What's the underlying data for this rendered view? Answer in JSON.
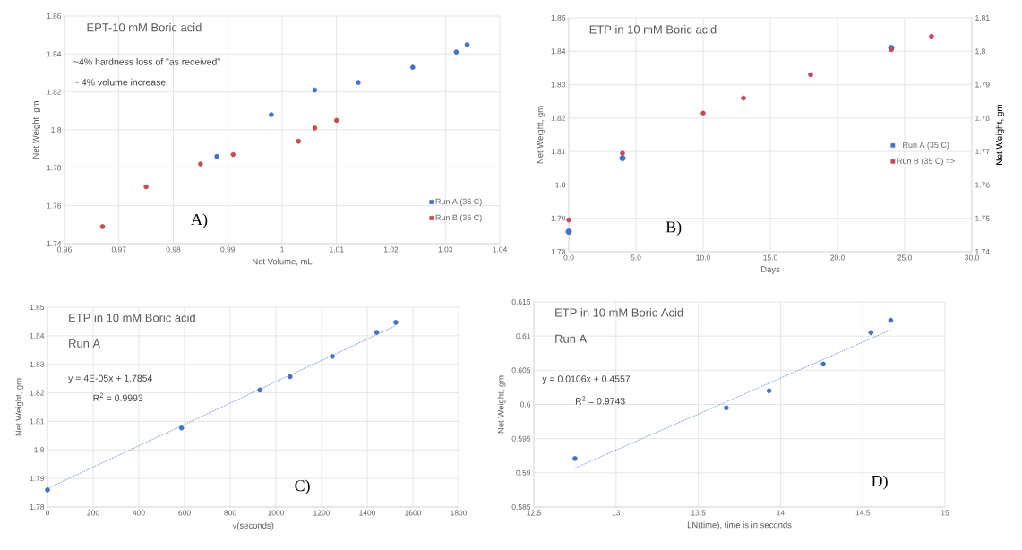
{
  "chart_data": [
    {
      "type": "scatter",
      "title": "EPT-10 mM Boric acid",
      "xlabel": "Net Volume, mL",
      "ylabel": "Net Weight, gm",
      "annotations": [
        "~4% hardness loss of \"as received\"",
        "~ 4% volume increase",
        "A)"
      ],
      "series": [
        {
          "name": "Run A (35 C)",
          "color": "#4472c4",
          "x": [
            0.988,
            0.998,
            1.006,
            1.014,
            1.024,
            1.032,
            1.034
          ],
          "values": [
            1.786,
            1.808,
            1.821,
            1.825,
            1.833,
            1.841,
            1.845
          ]
        },
        {
          "name": "Run B (35 C)",
          "color": "#c0504d",
          "x": [
            0.967,
            0.975,
            0.985,
            0.991,
            1.003,
            1.006,
            1.01
          ],
          "values": [
            1.749,
            1.77,
            1.782,
            1.787,
            1.794,
            1.801,
            1.805
          ]
        }
      ],
      "xlim": [
        0.96,
        1.04
      ],
      "xticks": [
        0.96,
        0.97,
        0.98,
        0.99,
        1,
        1.01,
        1.02,
        1.03,
        1.04
      ],
      "ylim": [
        1.74,
        1.86
      ],
      "yticks": [
        1.74,
        1.76,
        1.78,
        1.8,
        1.82,
        1.84,
        1.86
      ],
      "grid": true,
      "legend": "bottom right",
      "marker": "circle"
    },
    {
      "type": "scatter",
      "title": "ETP in 10 mM Boric acid",
      "xlabel": "Days",
      "ylabel": "Net Weight, gm",
      "y2label": "Net Weight, gm",
      "annotations": [
        "B)"
      ],
      "series": [
        {
          "name": "Run A (35 C)",
          "color": "#4472c4",
          "x": [
            0,
            4,
            24
          ],
          "values": [
            1.786,
            1.808,
            1.841
          ]
        },
        {
          "name": "Run B (35 C) =>",
          "color": "#be4b62",
          "axis": "y2",
          "x": [
            0,
            4,
            10,
            13,
            18,
            24,
            27
          ],
          "values": [
            1.7495,
            1.7695,
            1.7815,
            1.786,
            1.793,
            1.8005,
            1.8045
          ]
        }
      ],
      "xlim": [
        0,
        30
      ],
      "xticks": [
        {
          "value": 0,
          "label": "0.0"
        },
        {
          "value": 5,
          "label": "5.0"
        },
        {
          "value": 10,
          "label": "10.0"
        },
        {
          "value": 15,
          "label": "15.0"
        },
        {
          "value": 20,
          "label": "20.0"
        },
        {
          "value": 25,
          "label": "25.0"
        },
        {
          "value": 30,
          "label": "30.0"
        }
      ],
      "ylim": [
        1.78,
        1.85
      ],
      "yticks": [
        1.78,
        1.79,
        1.8,
        1.81,
        1.82,
        1.83,
        1.84,
        1.85
      ],
      "y2lim": [
        1.74,
        1.81
      ],
      "y2ticks": [
        1.74,
        1.75,
        1.76,
        1.77,
        1.78,
        1.79,
        1.8,
        1.81
      ],
      "grid": true,
      "legend": "right",
      "marker": "circle"
    },
    {
      "type": "scatter",
      "title": "ETP in 10 mM Boric acid",
      "subtitle": "Run A",
      "xlabel": "√(seconds)",
      "ylabel": "Net Weight, gm",
      "annotations": [
        "y = 4E-05x + 1.7854",
        "R$^{2}$ = 0.9993",
        "C)"
      ],
      "series": [
        {
          "color": "#4472c4",
          "x": [
            0,
            587,
            930,
            1062,
            1247,
            1441,
            1525
          ],
          "values": [
            1.786,
            1.8077,
            1.821,
            1.8257,
            1.8328,
            1.8412,
            1.8447
          ]
        },
        {
          "type": "line",
          "color": "#4472c4",
          "line_style": "dotted",
          "marker": "none",
          "x": [
            0,
            1525
          ],
          "values": [
            1.7865,
            1.8435
          ]
        }
      ],
      "xlim": [
        0,
        1800
      ],
      "xticks": [
        0,
        200,
        400,
        600,
        800,
        1000,
        1200,
        1400,
        1600,
        1800
      ],
      "ylim": [
        1.78,
        1.85
      ],
      "yticks": [
        1.78,
        1.79,
        1.8,
        1.81,
        1.82,
        1.83,
        1.84,
        1.85
      ],
      "grid": true,
      "marker": "circle"
    },
    {
      "type": "scatter",
      "title": "ETP in 10 mM Boric Acid",
      "subtitle": "Run A",
      "xlabel": "LN(time), time is in seconds",
      "ylabel": "Net Weight, gm",
      "annotations": [
        "y = 0.0106x + 0.4557",
        "R$^{2}$ = 0.9743",
        "D)"
      ],
      "series": [
        {
          "color": "#4472c4",
          "x": [
            12.75,
            13.67,
            13.93,
            14.26,
            14.55,
            14.67
          ],
          "values": [
            0.5921,
            0.5995,
            0.602,
            0.6059,
            0.6105,
            0.6123
          ]
        },
        {
          "type": "line",
          "color": "#4472c4",
          "line_style": "dotted",
          "marker": "none",
          "x": [
            12.75,
            14.67
          ],
          "values": [
            0.5907,
            0.6109
          ]
        }
      ],
      "xlim": [
        12.5,
        15
      ],
      "xticks": [
        12.5,
        13,
        13.5,
        14,
        14.5,
        15
      ],
      "ylim": [
        0.585,
        0.615
      ],
      "yticks": [
        0.585,
        0.59,
        0.595,
        0.6,
        0.605,
        0.61,
        0.615
      ],
      "grid": true,
      "marker": "circle"
    }
  ]
}
